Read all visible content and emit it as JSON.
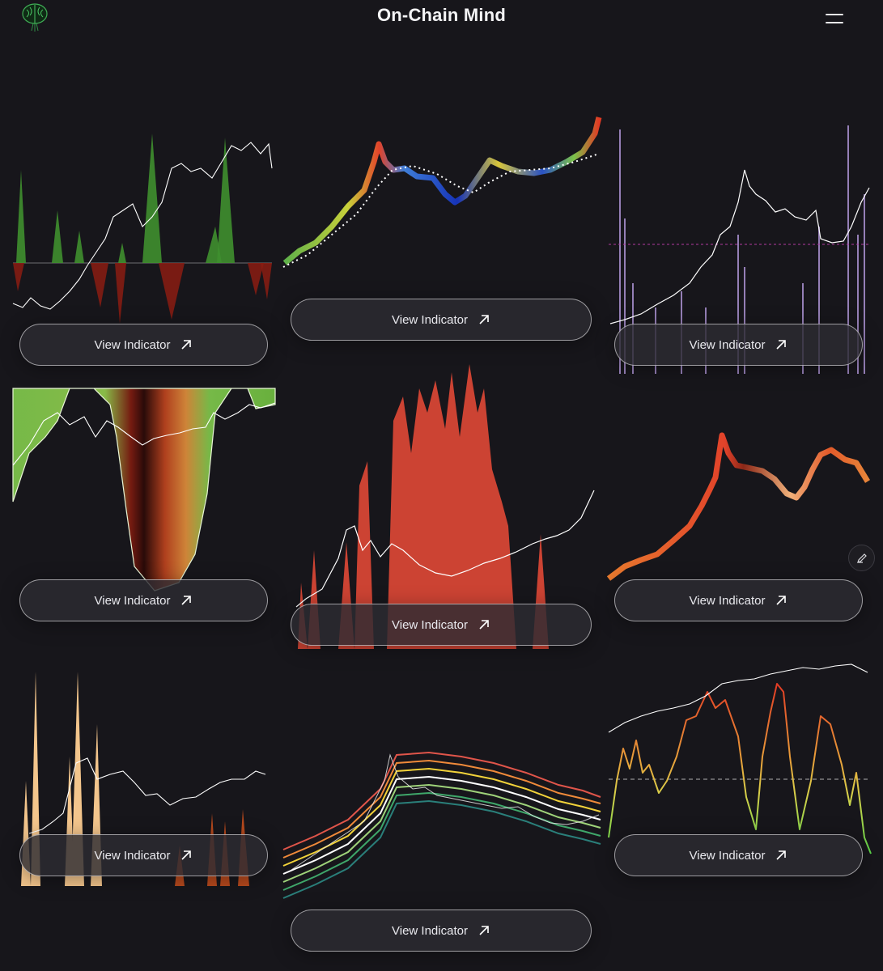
{
  "app": {
    "title": "On-Chain Mind"
  },
  "icons": {
    "logo": "brain-logo-icon",
    "menu": "hamburger-menu-icon",
    "arrow": "arrow-up-right-icon",
    "edit": "pencil-icon"
  },
  "colors": {
    "background": "#17161b",
    "button_bg": "#2c2b32",
    "accent_green": "#4caf50",
    "accent_red": "#e53935"
  },
  "cards": [
    {
      "button_label": "View Indicator"
    },
    {
      "button_label": "View Indicator"
    },
    {
      "button_label": "View Indicator"
    },
    {
      "button_label": "View Indicator"
    },
    {
      "button_label": "View Indicator"
    },
    {
      "button_label": "View Indicator"
    },
    {
      "button_label": "View Indicator"
    },
    {
      "button_label": "View Indicator"
    },
    {
      "button_label": "View Indicator"
    }
  ]
}
